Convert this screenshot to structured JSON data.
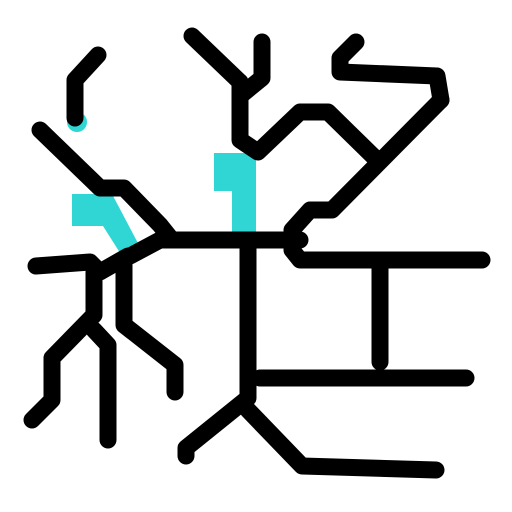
{
  "colors": {
    "background": "#ffffff",
    "stroke": "#000000",
    "accent": "#2fd6d4"
  },
  "icons": {
    "main": "abstract-line-glyph-icon"
  }
}
